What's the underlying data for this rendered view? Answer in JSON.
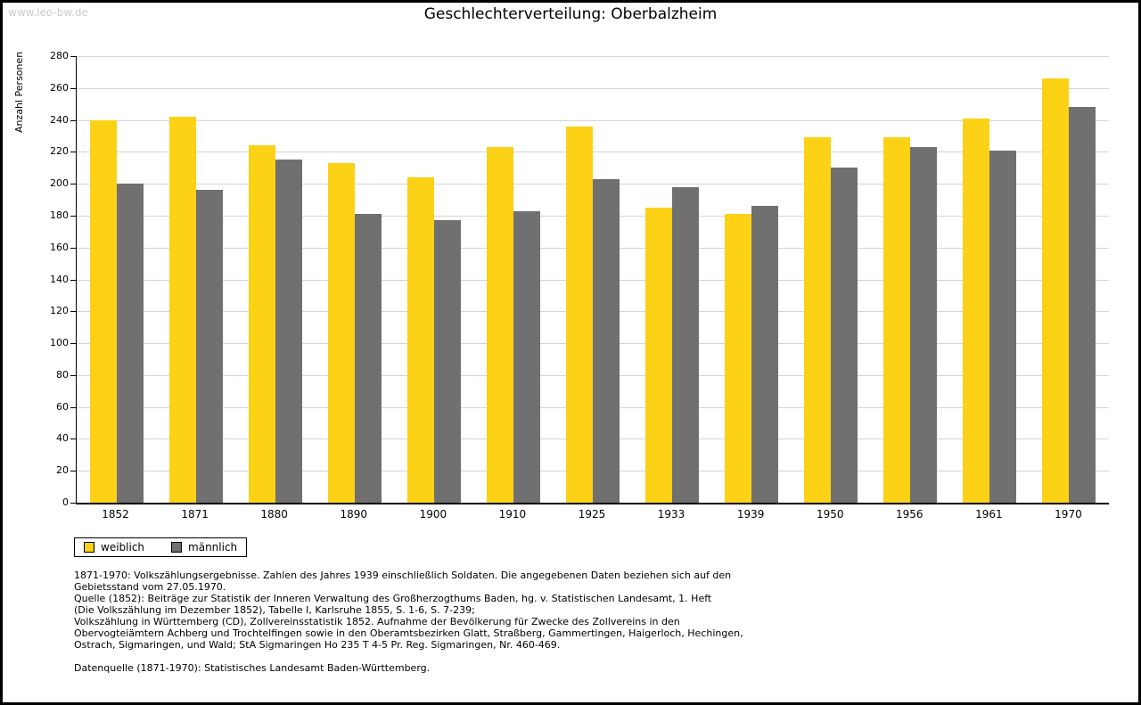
{
  "watermark": "www.leo-bw.de",
  "chart_data": {
    "type": "bar",
    "title": "Geschlechterverteilung: Oberbalzheim",
    "ylabel": "Anzahl Personen",
    "xlabel": "",
    "ylim": [
      0,
      280
    ],
    "ytick_step": 20,
    "grid": true,
    "legend_position": "bottom-left",
    "categories": [
      "1852",
      "1871",
      "1880",
      "1890",
      "1900",
      "1910",
      "1925",
      "1933",
      "1939",
      "1950",
      "1956",
      "1961",
      "1970"
    ],
    "series": [
      {
        "name": "weiblich",
        "color": "#FCD116",
        "values": [
          240,
          242,
          224,
          213,
          204,
          223,
          236,
          185,
          181,
          229,
          229,
          241,
          266
        ]
      },
      {
        "name": "männlich",
        "color": "#707070",
        "values": [
          200,
          196,
          215,
          181,
          177,
          183,
          203,
          198,
          186,
          210,
          223,
          221,
          248
        ]
      }
    ]
  },
  "footnotes": {
    "paragraphs": [
      [
        "1871-1970: Volkszählungsergebnisse. Zahlen des Jahres 1939 einschließlich Soldaten. Die angegebenen Daten beziehen sich auf den",
        "Gebietsstand vom 27.05.1970.",
        "Quelle (1852): Beiträge zur Statistik der Inneren Verwaltung des Großherzogthums Baden, hg. v. Statistischen Landesamt, 1. Heft",
        "(Die Volkszählung im Dezember 1852), Tabelle I, Karlsruhe 1855, S. 1-6, S. 7-239;",
        "Volkszählung in Württemberg (CD), Zollvereinsstatistik 1852. Aufnahme der Bevölkerung für Zwecke des Zollvereins in den",
        "Obervogteiämtern Achberg und Trochtelfingen sowie in den Oberamtsbezirken Glatt, Straßberg, Gammertingen, Haigerloch, Hechingen,",
        "Ostrach, Sigmaringen, und Wald; StA Sigmaringen Ho 235 T 4-5 Pr. Reg. Sigmaringen, Nr. 460-469."
      ],
      [
        "Datenquelle (1871-1970): Statistisches Landesamt Baden-Württemberg."
      ]
    ]
  }
}
